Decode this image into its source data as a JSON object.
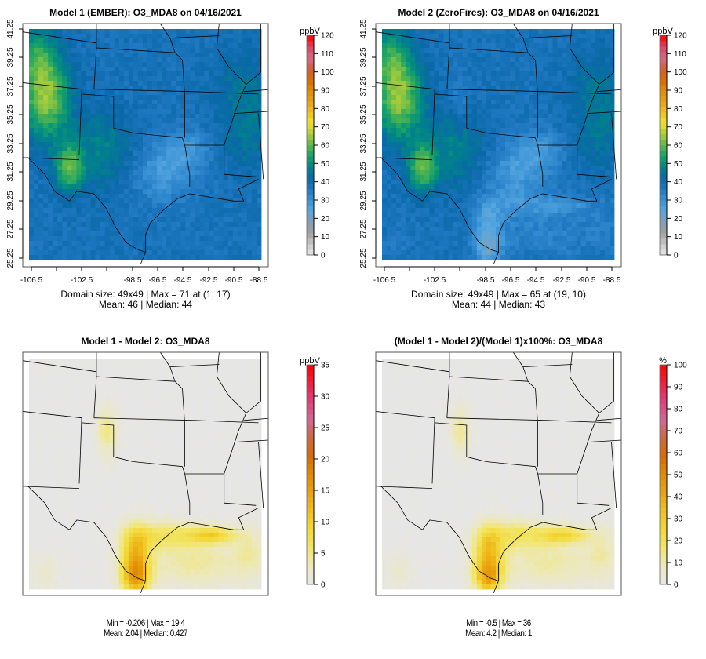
{
  "chart_data": [
    {
      "type": "heatmap",
      "title": "Model 1 (EMBER): O3_MDA8 on 04/16/2021",
      "variable": "O3_MDA8",
      "date": "04/16/2021",
      "domain_size": "49x49",
      "x_ticks": [
        "-106.5",
        "-102.5",
        "-98.5",
        "-96.5",
        "-94.5",
        "-92.5",
        "-90.5",
        "-88.5"
      ],
      "y_ticks": [
        "25.25",
        "27.25",
        "29.25",
        "31.25",
        "33.25",
        "35.25",
        "37.25",
        "39.25",
        "41.25"
      ],
      "colorbar": {
        "unit": "ppbV",
        "ticks": [
          "0",
          "10",
          "20",
          "30",
          "40",
          "50",
          "60",
          "70",
          "80",
          "90",
          "100",
          "110",
          "120"
        ],
        "range": [
          0,
          120
        ],
        "palette": "sequential"
      },
      "stats_line1": "Domain size: 49x49 | Max = 71 at (1, 17)",
      "stats_line2": "Mean: 46 |  Median: 44",
      "stats": {
        "max": 71,
        "max_at": [
          1,
          17
        ],
        "mean": 46,
        "median": 44
      }
    },
    {
      "type": "heatmap",
      "title": "Model 2 (ZeroFires): O3_MDA8 on 04/16/2021",
      "variable": "O3_MDA8",
      "date": "04/16/2021",
      "domain_size": "49x49",
      "x_ticks": [
        "-106.5",
        "-102.5",
        "-98.5",
        "-96.5",
        "-94.5",
        "-92.5",
        "-90.5",
        "-88.5"
      ],
      "y_ticks": [
        "25.25",
        "27.25",
        "29.25",
        "31.25",
        "33.25",
        "35.25",
        "37.25",
        "39.25",
        "41.25"
      ],
      "colorbar": {
        "unit": "ppbV",
        "ticks": [
          "0",
          "10",
          "20",
          "30",
          "40",
          "50",
          "60",
          "70",
          "80",
          "90",
          "100",
          "110",
          "120"
        ],
        "range": [
          0,
          120
        ],
        "palette": "sequential"
      },
      "stats_line1": "Domain size: 49x49 | Max = 65 at (19, 10)",
      "stats_line2": "Mean: 44 |  Median: 43",
      "stats": {
        "max": 65,
        "max_at": [
          19,
          10
        ],
        "mean": 44,
        "median": 43
      }
    },
    {
      "type": "heatmap",
      "title": "Model 1 - Model 2: O3_MDA8",
      "variable": "O3_MDA8",
      "colorbar": {
        "unit": "ppbV",
        "ticks": [
          "0",
          "5",
          "10",
          "15",
          "20",
          "25",
          "30",
          "35"
        ],
        "range": [
          0,
          35
        ],
        "palette": "difference"
      },
      "stats_line1": "Min = -0.206 | Max = 19.4",
      "stats_line2": "Mean: 2.04 |  Median: 0.427",
      "stats": {
        "min": -0.206,
        "max": 19.4,
        "mean": 2.04,
        "median": 0.427
      }
    },
    {
      "type": "heatmap",
      "title": "(Model 1 - Model 2)/(Model 1)x100%: O3_MDA8",
      "variable": "O3_MDA8",
      "colorbar": {
        "unit": "%",
        "ticks": [
          "0",
          "10",
          "20",
          "30",
          "40",
          "50",
          "60",
          "70",
          "80",
          "90",
          "100"
        ],
        "range": [
          0,
          100
        ],
        "palette": "difference"
      },
      "stats_line1": "Min = -0.5 | Max = 36",
      "stats_line2": "Mean: 4.2 |  Median: 1",
      "stats": {
        "min": -0.5,
        "max": 36,
        "mean": 4.2,
        "median": 1
      }
    }
  ],
  "colors": {
    "seq_palette": [
      "#e6e6e6",
      "#c8c8c8",
      "#a0a0a0",
      "#8a9cad",
      "#5aa8e0",
      "#3a92d4",
      "#1f78c1",
      "#0a68a8",
      "#00838a",
      "#16a06a",
      "#5cb84c",
      "#a8cc3c",
      "#f0e030",
      "#f0c020",
      "#e8a010",
      "#e08a00",
      "#d86a00",
      "#d0603a",
      "#d46b8a",
      "#e04060",
      "#ff0000"
    ],
    "diff_palette": [
      "#e6e6e6",
      "#ece8c0",
      "#f2e66a",
      "#f2d93a",
      "#efc020",
      "#eaa410",
      "#e08c00",
      "#d86c00",
      "#cc6a40",
      "#d06a94",
      "#e0407a",
      "#f02040",
      "#ff0000"
    ],
    "frame": "#555555",
    "border": "#000000"
  }
}
